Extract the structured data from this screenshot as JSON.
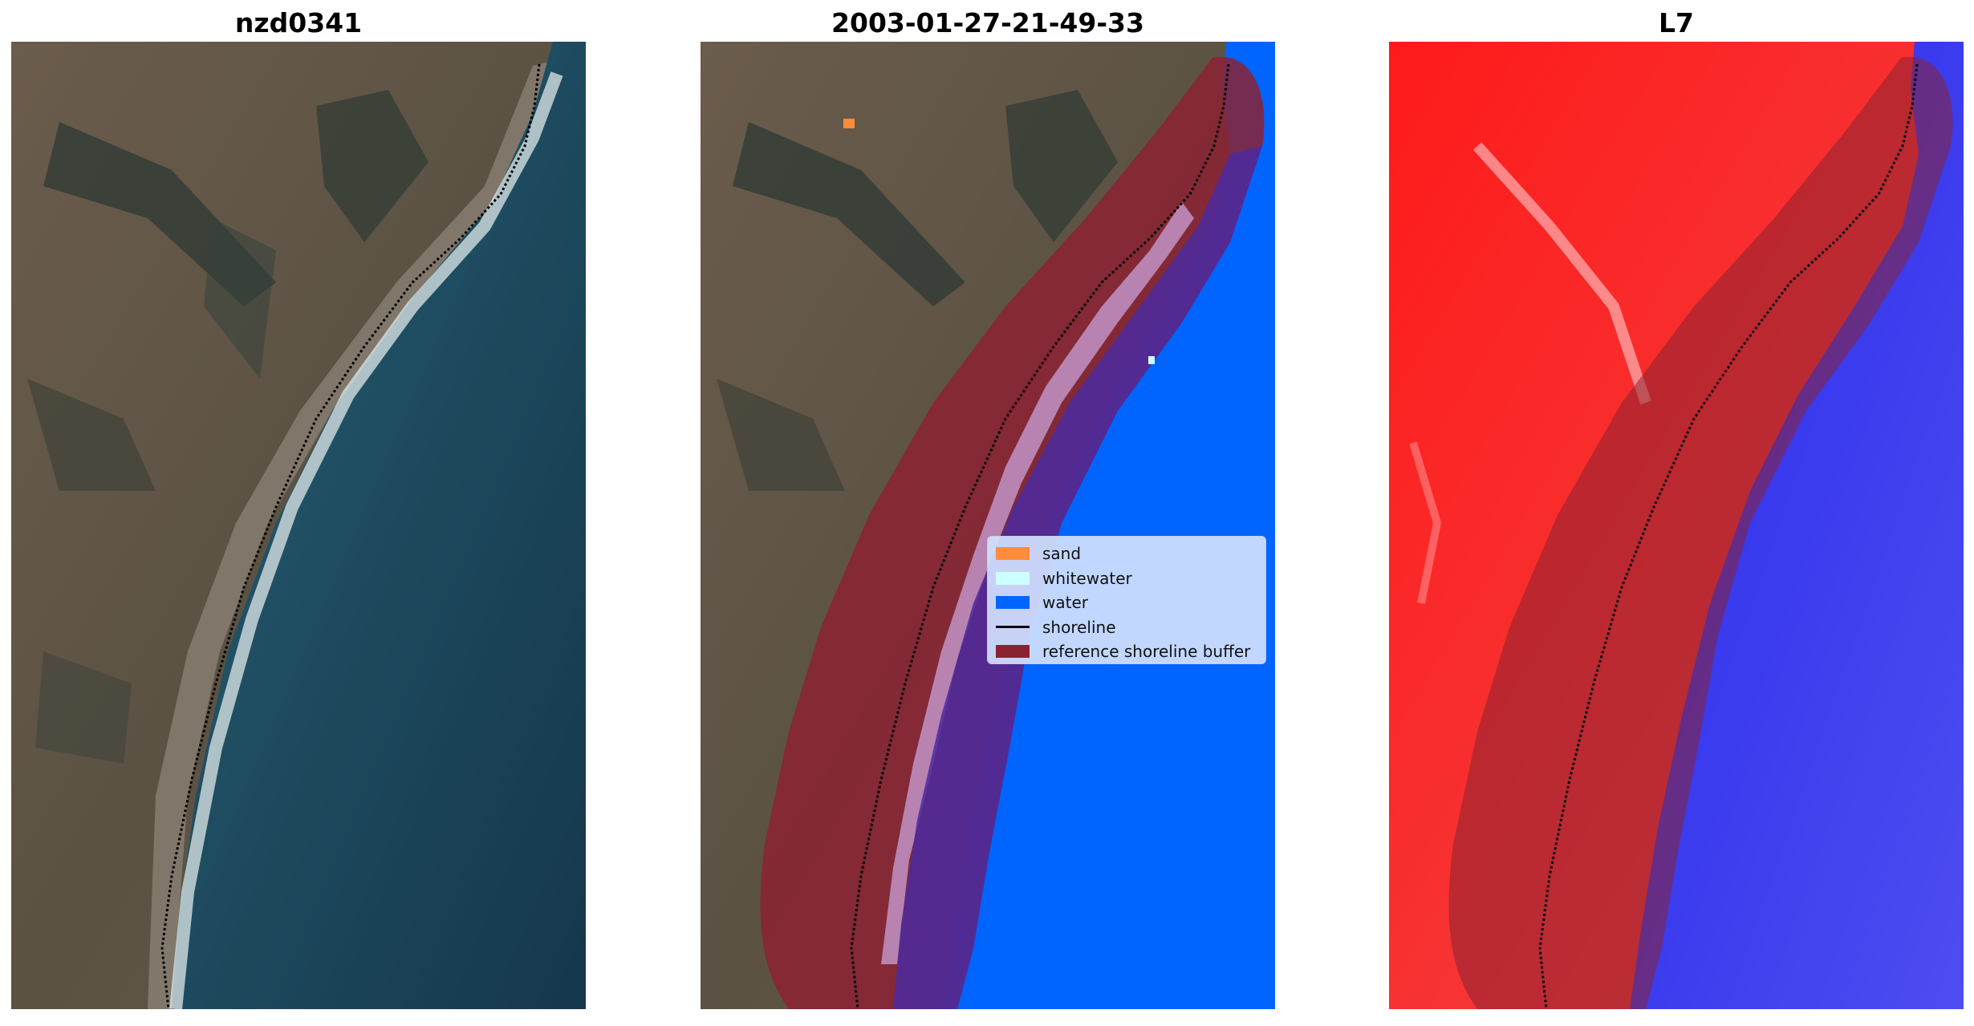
{
  "panels": [
    {
      "title": "nzd0341"
    },
    {
      "title": "2003-01-27-21-49-33"
    },
    {
      "title": "L7"
    }
  ],
  "legend": {
    "items": [
      {
        "label": "sand",
        "color": "#ff8c3a",
        "kind": "patch"
      },
      {
        "label": "whitewater",
        "color": "#ccffff",
        "kind": "patch"
      },
      {
        "label": "water",
        "color": "#0064ff",
        "kind": "patch"
      },
      {
        "label": "shoreline",
        "color": "#000000",
        "kind": "line"
      },
      {
        "label": "reference shoreline buffer",
        "color": "#8b2232",
        "kind": "patch"
      }
    ]
  },
  "colors": {
    "land_rgb": "#5e5446",
    "ocean_rgb": "#1d4a5e",
    "classified_water": "#0064ff",
    "buffer": "#8b2232",
    "index_land": "#ff1a1a",
    "index_water": "#2a2aee"
  }
}
